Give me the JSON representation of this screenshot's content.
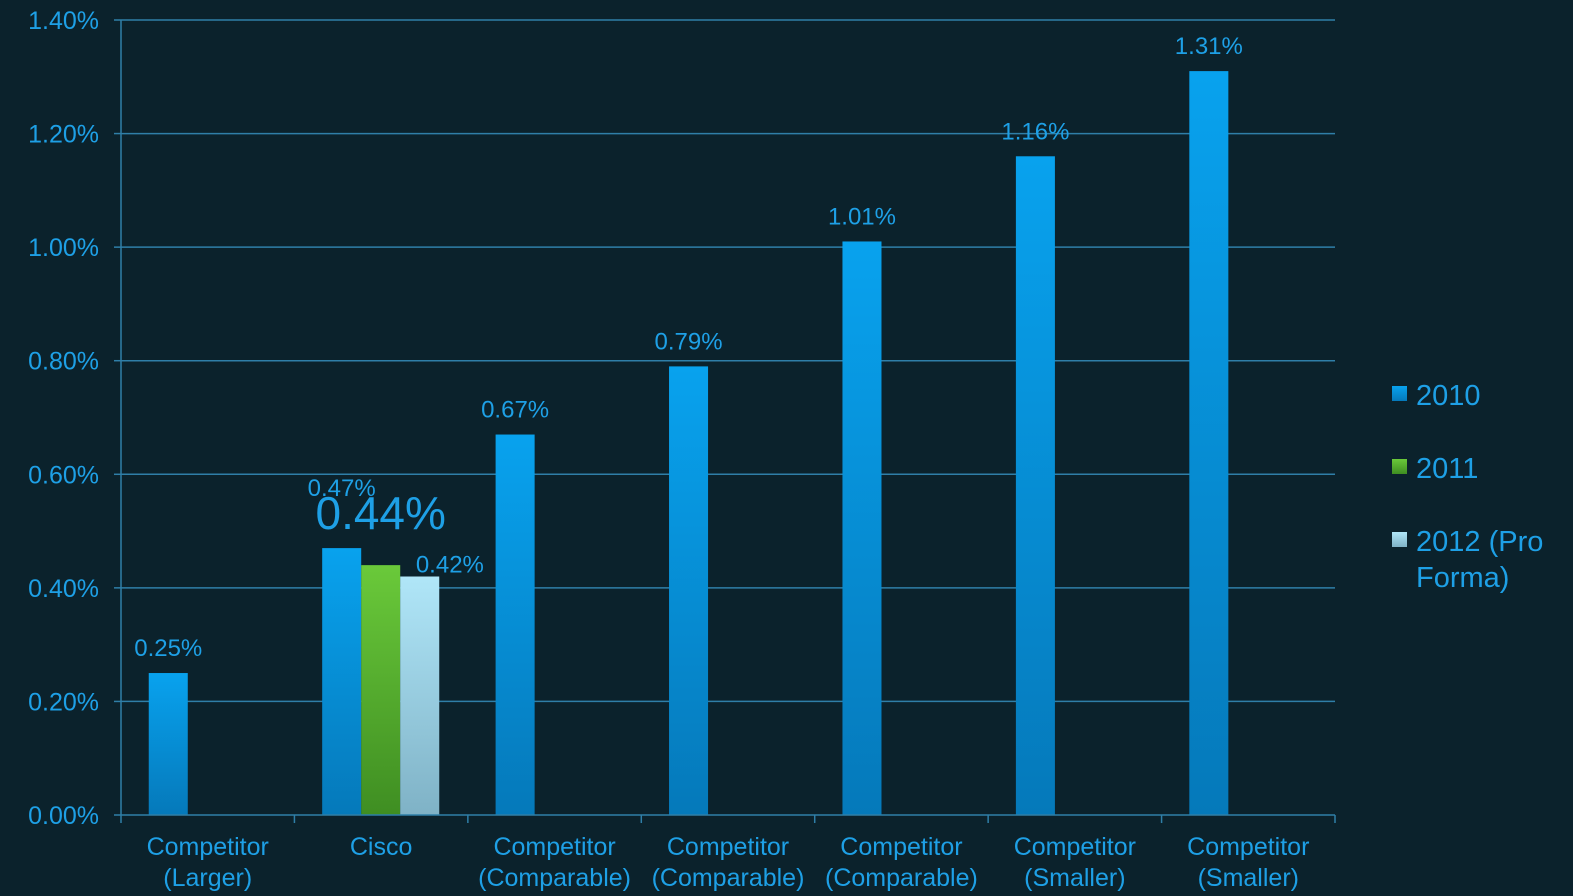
{
  "chart_data": {
    "type": "bar",
    "title": "",
    "xlabel": "",
    "ylabel": "",
    "ylim": [
      0,
      1.4
    ],
    "y_tick_step": 0.2,
    "y_tick_labels": [
      "0.00%",
      "0.20%",
      "0.40%",
      "0.60%",
      "0.80%",
      "1.00%",
      "1.20%",
      "1.40%"
    ],
    "grid": true,
    "legend_position": "right",
    "categories": [
      [
        "Competitor",
        "(Larger)"
      ],
      [
        "Cisco"
      ],
      [
        "Competitor",
        "(Comparable)"
      ],
      [
        "Competitor",
        "(Comparable)"
      ],
      [
        "Competitor",
        "(Comparable)"
      ],
      [
        "Competitor",
        "(Smaller)"
      ],
      [
        "Competitor",
        "(Smaller)"
      ]
    ],
    "series": [
      {
        "name": "2010",
        "color": "#0a96e6",
        "values": [
          0.25,
          0.47,
          0.67,
          0.79,
          1.01,
          1.16,
          1.31
        ],
        "labels": [
          "0.25%",
          "0.47%",
          "0.67%",
          "0.79%",
          "1.01%",
          "1.16%",
          "1.31%"
        ]
      },
      {
        "name": "2011",
        "color": "#58b52a",
        "values": [
          null,
          0.44,
          null,
          null,
          null,
          null,
          null
        ],
        "labels": [
          null,
          "0.44%",
          null,
          null,
          null,
          null,
          null
        ]
      },
      {
        "name": "2012 (Pro Forma)",
        "legend_lines": [
          "2012 (Pro",
          "Forma)"
        ],
        "color": "#a8dff2",
        "values": [
          null,
          0.42,
          null,
          null,
          null,
          null,
          null
        ],
        "labels": [
          null,
          "0.42%",
          null,
          null,
          null,
          null,
          null
        ]
      }
    ],
    "highlight_label": {
      "series": 1,
      "category": 1
    }
  }
}
